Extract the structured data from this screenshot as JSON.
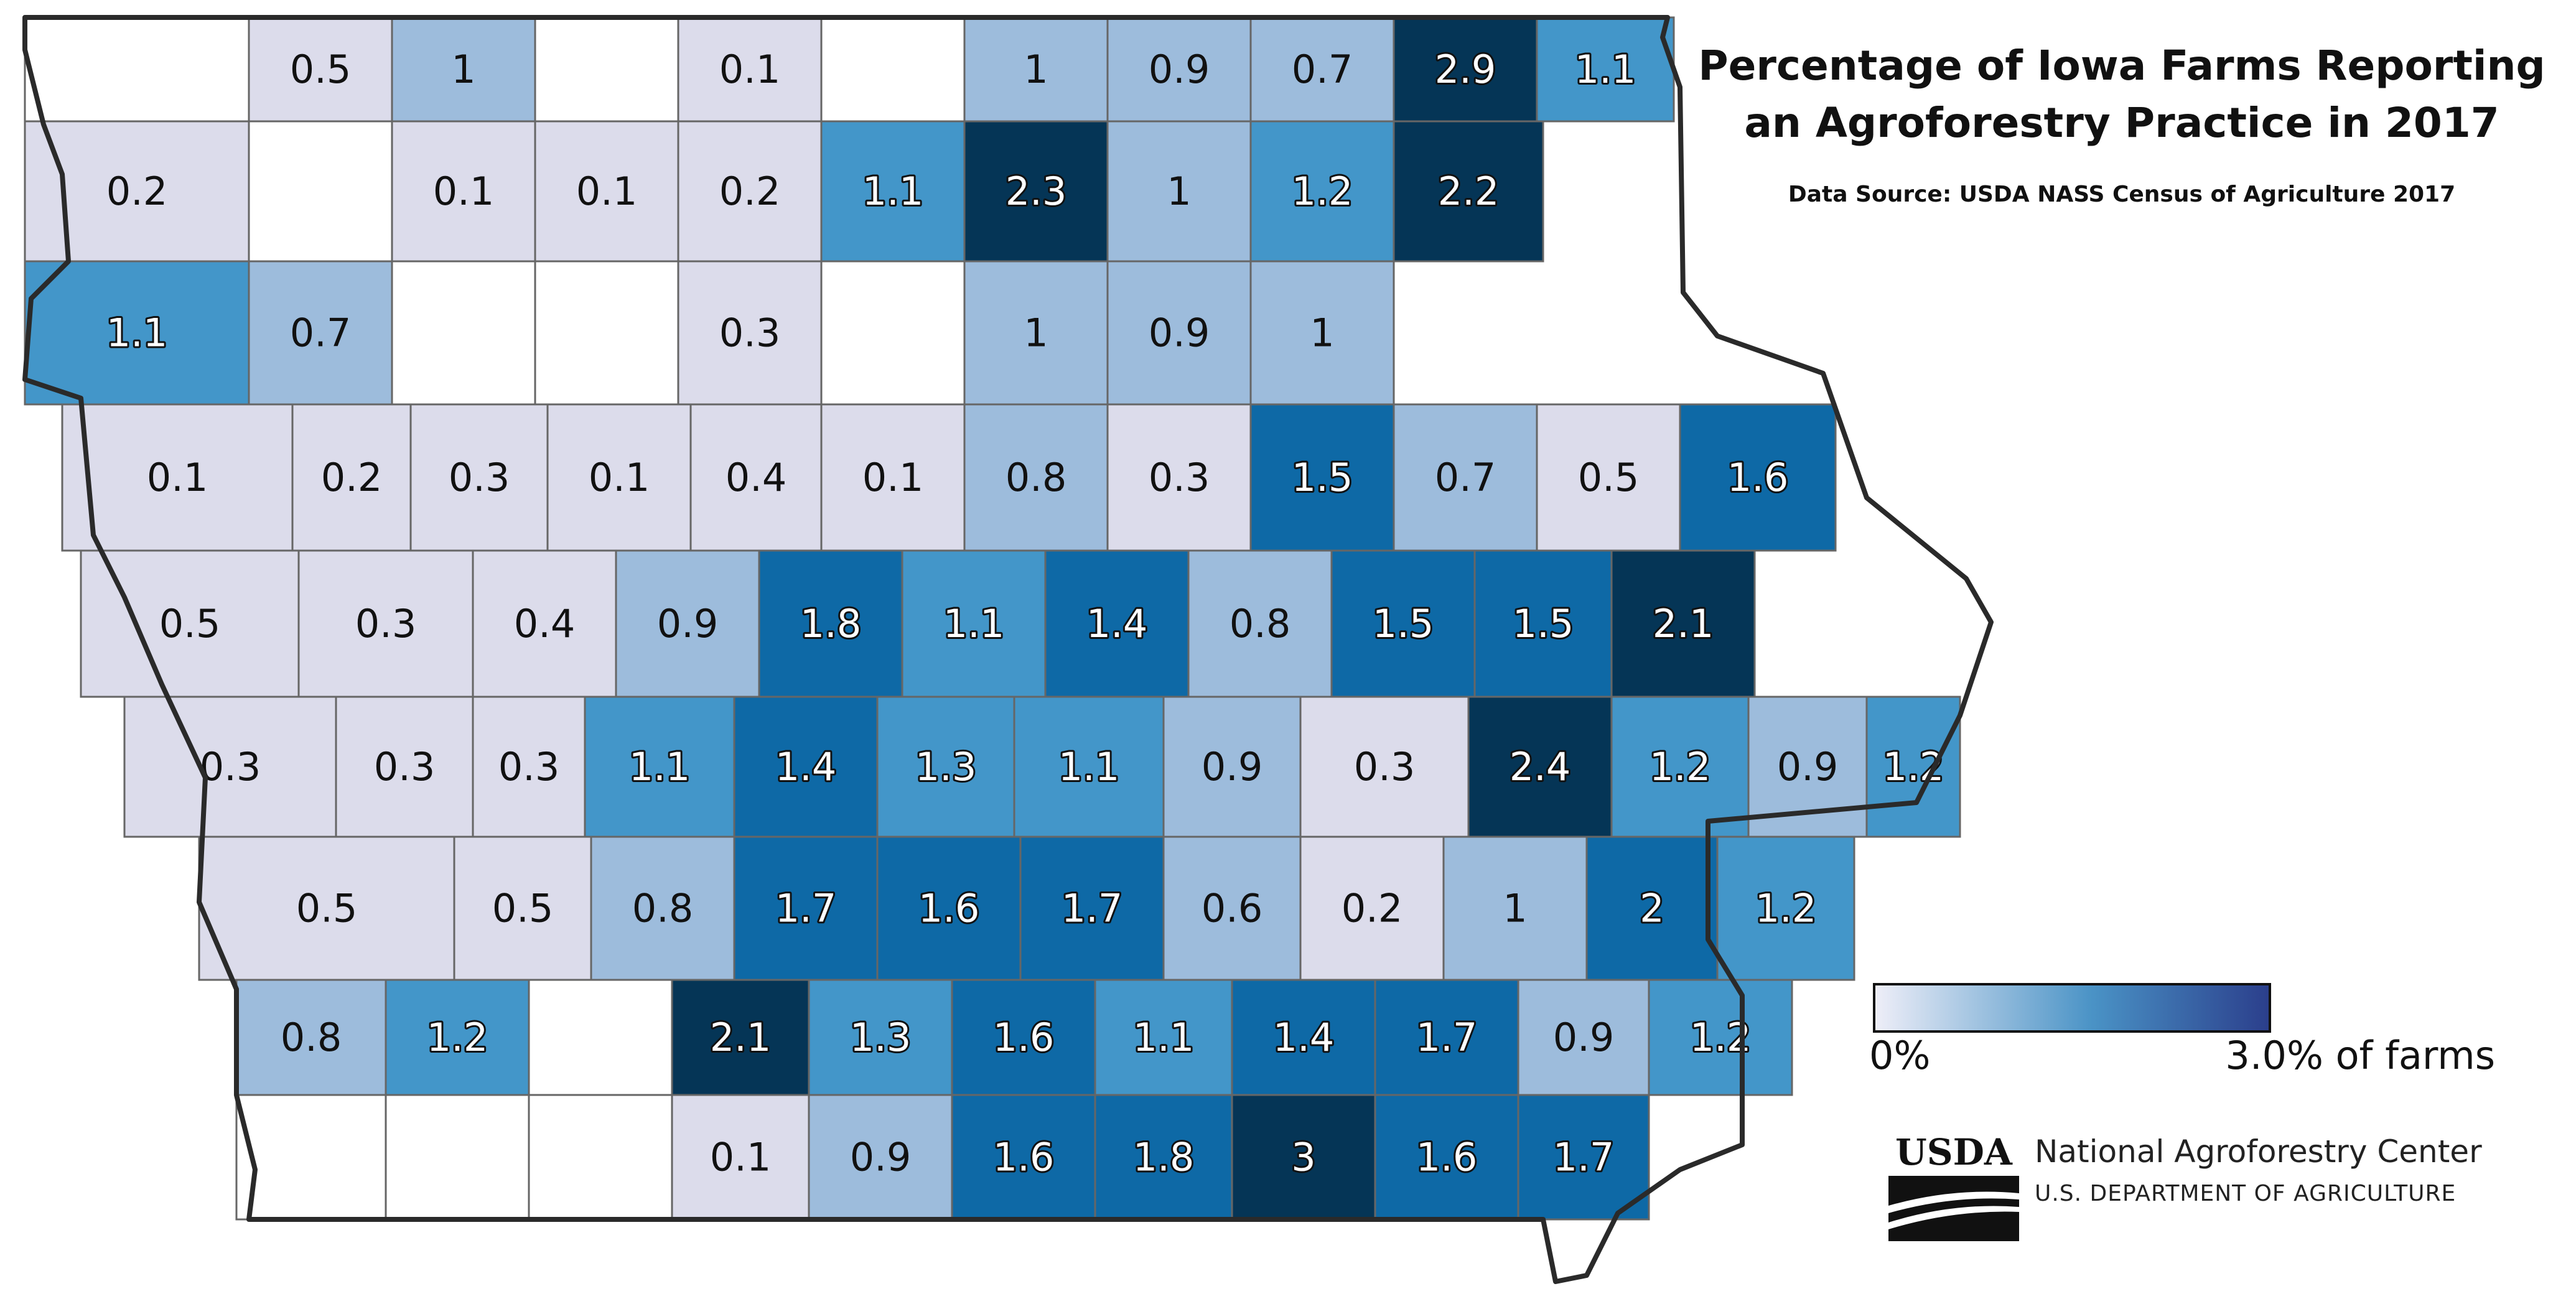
{
  "title_line1": "Percentage of Iowa Farms Reporting",
  "title_line2": "an Agroforestry Practice in 2017",
  "data_source": "Data Source: USDA NASS Census of Agriculture 2017",
  "legend": {
    "min_label": "0%",
    "max_label": "3.0% of farms",
    "min_value": 0,
    "max_value": 3.0,
    "color_min": "#eeeef8",
    "color_mid": "#4a93c6",
    "color_max": "#2b3f8c"
  },
  "credit": {
    "logo_text": "USDA",
    "name": "National Agroforestry Center",
    "department": "U.S. DEPARTMENT OF AGRICULTURE"
  },
  "chart_data": {
    "type": "choropleth",
    "unit": "percent of farms",
    "bins_colors": {
      "no_data": "#ffffff",
      "v0_0.5": "#dcdceb",
      "v0.6_1": "#9dbcdc",
      "v1.1_1.3": "#4396c9",
      "v1.4_2": "#0e69a6",
      "v2.1_3": "#053556"
    },
    "rows": [
      [
        null,
        0.5,
        1,
        null,
        0.1,
        null,
        1,
        0.9,
        0.7,
        2.9,
        1.1
      ],
      [
        0.2,
        null,
        0.1,
        0.1,
        0.2,
        1.1,
        2.3,
        1,
        1.2,
        2.2
      ],
      [
        1.1,
        0.7,
        null,
        null,
        0.3,
        null,
        1,
        0.9,
        1
      ],
      [
        0.1,
        0.2,
        0.3,
        0.1,
        0.4,
        0.1,
        0.8,
        0.3,
        1.5,
        0.7,
        0.5,
        1.6
      ],
      [
        0.5,
        0.3,
        0.4,
        0.9,
        1.8,
        1.1,
        1.4,
        0.8,
        1.5,
        1.5,
        2.1
      ],
      [
        0.3,
        0.3,
        0.3,
        1.1,
        1.4,
        1.3,
        1.1,
        0.9,
        0.3,
        2.4,
        1.2,
        0.9,
        1.2
      ],
      [
        0.5,
        0.5,
        0.8,
        1.7,
        1.6,
        1.7,
        0.6,
        0.2,
        1,
        2,
        1.2
      ],
      [
        0.8,
        1.2,
        null,
        2.1,
        1.3,
        1.6,
        1.1,
        1.4,
        1.7,
        0.9,
        1.2
      ],
      [
        null,
        null,
        null,
        0.1,
        0.9,
        1.6,
        1.8,
        3,
        1.6,
        1.7
      ]
    ]
  }
}
